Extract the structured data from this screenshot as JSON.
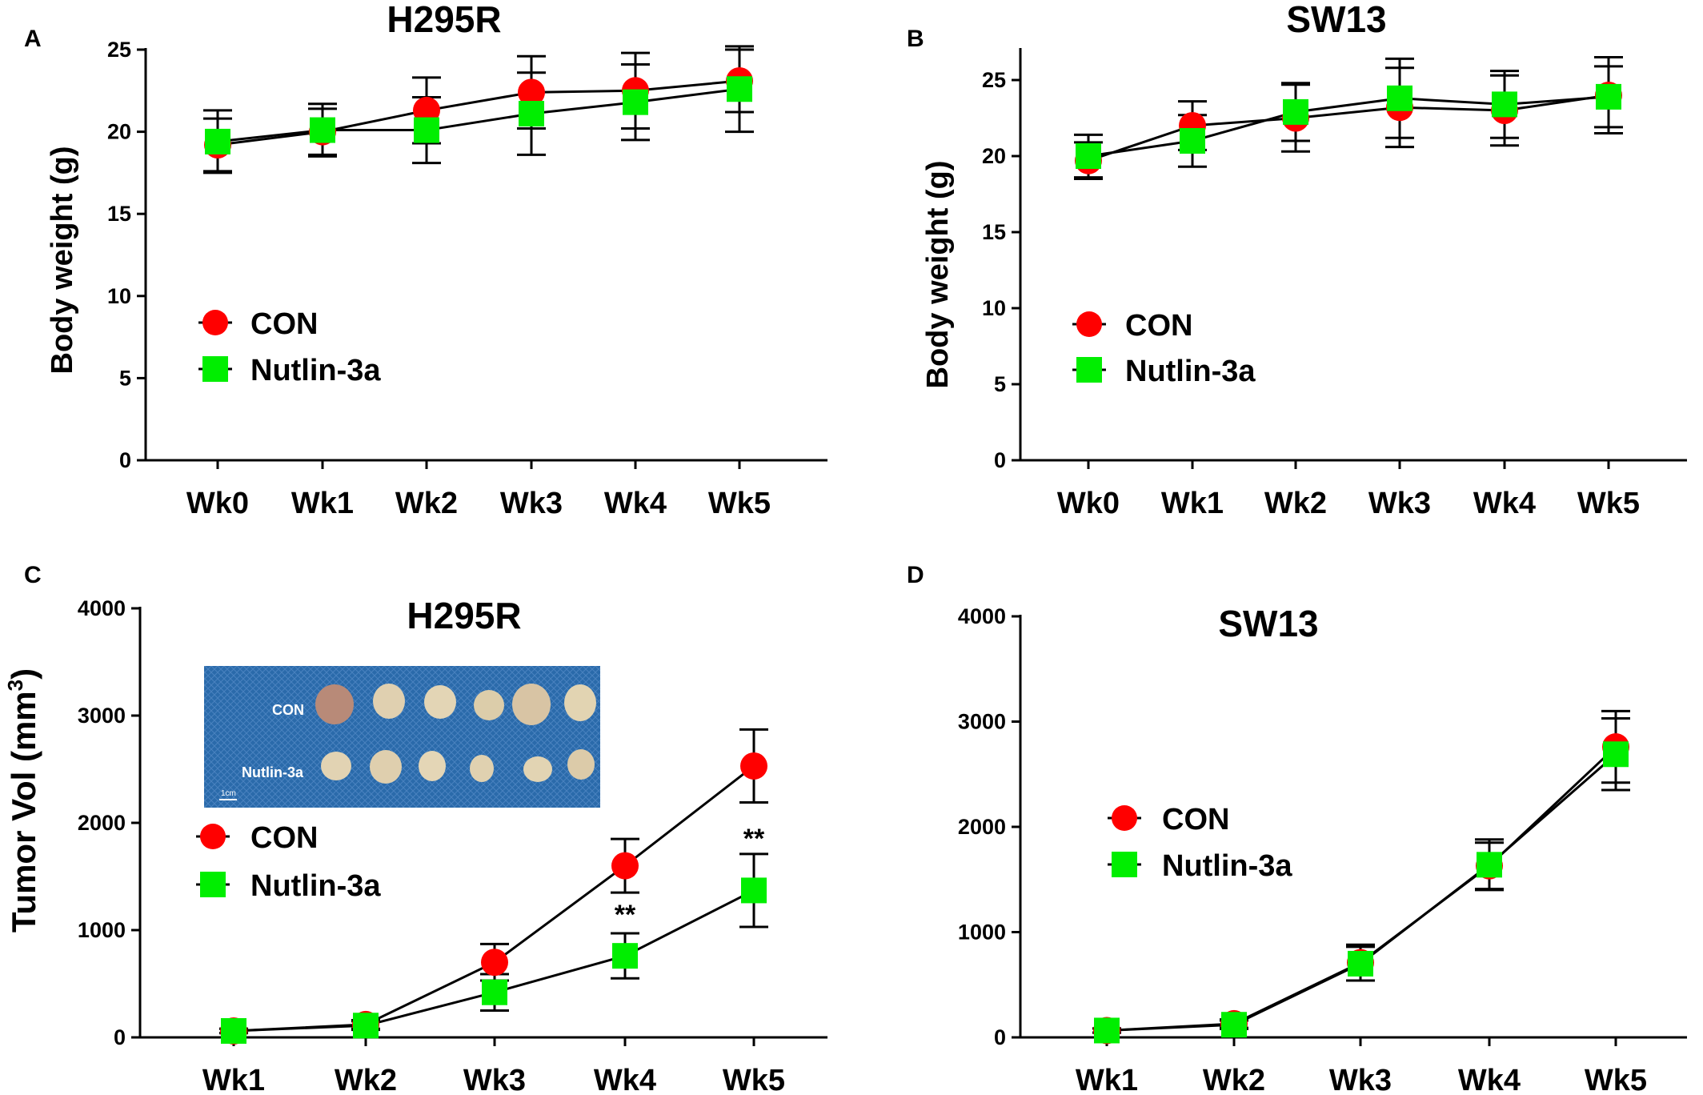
{
  "chart_data": [
    {
      "panel": "A",
      "type": "line",
      "title": "H295R",
      "ylabel": "Body weight (g)",
      "xlabel": "",
      "categories": [
        "Wk0",
        "Wk1",
        "Wk2",
        "Wk3",
        "Wk4",
        "Wk5"
      ],
      "ylim": [
        0,
        25
      ],
      "yticks": [
        0,
        5,
        10,
        15,
        20,
        25
      ],
      "grid": false,
      "legend_position": "left-middle",
      "series": [
        {
          "name": "CON",
          "marker": "circle",
          "color": "#ff0000",
          "values": [
            19.2,
            20.0,
            21.3,
            22.4,
            22.5,
            23.1
          ],
          "error": [
            1.6,
            1.4,
            2.0,
            2.2,
            2.3,
            1.9
          ]
        },
        {
          "name": "Nutlin-3a",
          "marker": "square",
          "color": "#00ee00",
          "values": [
            19.4,
            20.1,
            20.1,
            21.1,
            21.8,
            22.6
          ],
          "error": [
            1.9,
            1.6,
            2.0,
            2.5,
            2.3,
            2.6
          ]
        }
      ]
    },
    {
      "panel": "B",
      "type": "line",
      "title": "SW13",
      "ylabel": "Body weight (g)",
      "xlabel": "",
      "categories": [
        "Wk0",
        "Wk1",
        "Wk2",
        "Wk3",
        "Wk4",
        "Wk5"
      ],
      "ylim": [
        0,
        27
      ],
      "yticks": [
        0,
        5,
        10,
        15,
        20,
        25
      ],
      "grid": false,
      "legend_position": "left-middle",
      "series": [
        {
          "name": "CON",
          "marker": "circle",
          "color": "#ff0000",
          "values": [
            19.7,
            22.0,
            22.5,
            23.2,
            23.0,
            24.0
          ],
          "error": [
            1.2,
            1.6,
            2.2,
            2.6,
            2.3,
            2.5
          ]
        },
        {
          "name": "Nutlin-3a",
          "marker": "square",
          "color": "#00ee00",
          "values": [
            20.0,
            21.0,
            22.9,
            23.8,
            23.4,
            23.9
          ],
          "error": [
            1.4,
            1.7,
            1.9,
            2.6,
            2.2,
            2.0
          ]
        }
      ]
    },
    {
      "panel": "C",
      "type": "line",
      "title": "H295R",
      "ylabel": "Tumor Vol (mm",
      "ylabel_superscript": "3",
      "ylabel_suffix": ")",
      "xlabel": "",
      "categories": [
        "Wk1",
        "Wk2",
        "Wk3",
        "Wk4",
        "Wk5"
      ],
      "ylim": [
        0,
        4000
      ],
      "yticks": [
        0,
        1000,
        2000,
        3000,
        4000
      ],
      "grid": false,
      "legend_position": "left-middle",
      "series": [
        {
          "name": "CON",
          "marker": "circle",
          "color": "#ff0000",
          "values": [
            60,
            120,
            700,
            1600,
            2530
          ],
          "error": [
            20,
            40,
            170,
            250,
            340
          ]
        },
        {
          "name": "Nutlin-3a",
          "marker": "square",
          "color": "#00ee00",
          "values": [
            60,
            110,
            420,
            760,
            1370
          ],
          "error": [
            20,
            40,
            170,
            210,
            340
          ]
        }
      ],
      "annotations": [
        {
          "text": "**",
          "category": "Wk4",
          "value": 1060
        },
        {
          "text": "**",
          "category": "Wk5",
          "value": 1770
        }
      ],
      "inset_photo": {
        "row_labels": [
          "CON",
          "Nutlin-3a"
        ],
        "scale_label": "1cm",
        "background_color": "#2a6aaa"
      }
    },
    {
      "panel": "D",
      "type": "line",
      "title": "SW13",
      "ylabel": "",
      "xlabel": "",
      "categories": [
        "Wk1",
        "Wk2",
        "Wk3",
        "Wk4",
        "Wk5"
      ],
      "ylim": [
        0,
        4000
      ],
      "yticks": [
        0,
        1000,
        2000,
        3000,
        4000
      ],
      "grid": false,
      "legend_position": "left-middle",
      "series": [
        {
          "name": "CON",
          "marker": "circle",
          "color": "#ff0000",
          "values": [
            65,
            130,
            710,
            1630,
            2760
          ],
          "error": [
            20,
            40,
            170,
            220,
            340
          ]
        },
        {
          "name": "Nutlin-3a",
          "marker": "square",
          "color": "#00ee00",
          "values": [
            65,
            120,
            700,
            1640,
            2690
          ],
          "error": [
            20,
            40,
            160,
            240,
            340
          ]
        }
      ]
    }
  ]
}
